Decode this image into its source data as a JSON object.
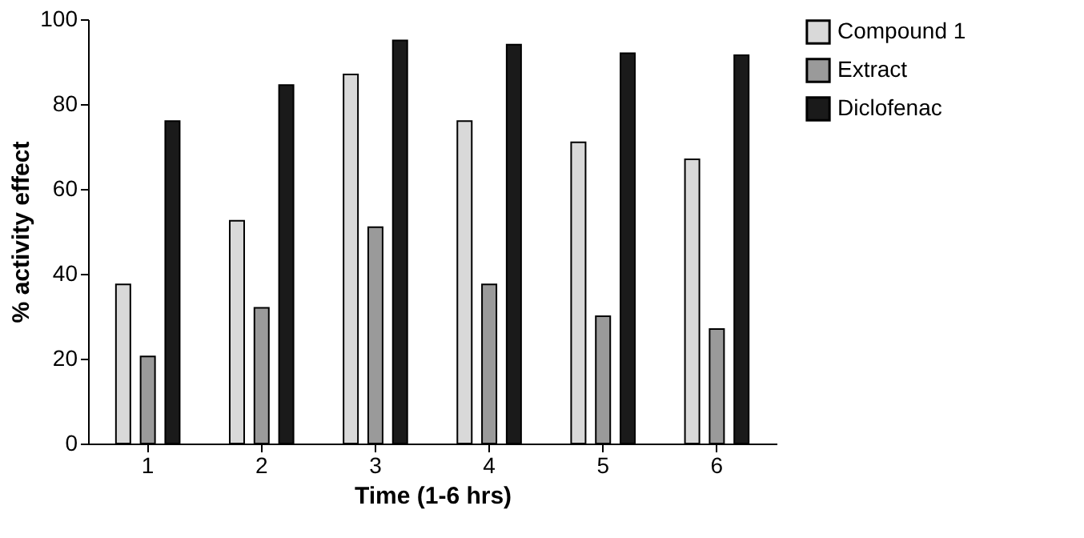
{
  "chart_data": {
    "type": "bar",
    "xlabel": "Time (1-6 hrs)",
    "ylabel": "% activity effect",
    "categories": [
      "1",
      "2",
      "3",
      "4",
      "5",
      "6"
    ],
    "series": [
      {
        "name": "Compound 1",
        "color": "#d9d9d9",
        "values": [
          37.5,
          52.5,
          87,
          76,
          71,
          67
        ]
      },
      {
        "name": "Extract",
        "color": "#9a9a9a",
        "values": [
          20.5,
          32,
          51,
          37.5,
          30,
          27
        ]
      },
      {
        "name": "Diclofenac",
        "color": "#1a1a1a",
        "values": [
          76,
          84.5,
          95,
          94,
          92,
          91.5
        ]
      }
    ],
    "ylim": [
      0,
      100
    ],
    "yticks": [
      0,
      20,
      40,
      60,
      80,
      100
    ],
    "grid": false,
    "legend": "top right"
  }
}
